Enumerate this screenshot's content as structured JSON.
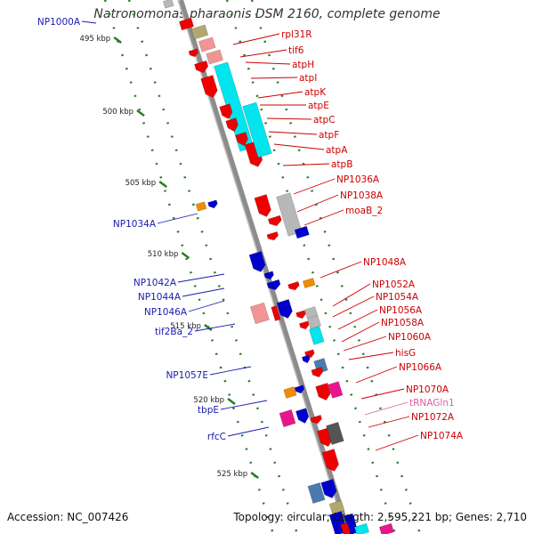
{
  "title": "Natronomonas pharaonis DSM 2160, complete genome",
  "footer": {
    "accession": "Accession: NC_007426",
    "summary": "Topology: circular; Length: 2,595,221 bp; Genes: 2,710"
  },
  "kbp_ticks": [
    "495 kbp",
    "500 kbp",
    "505 kbp",
    "510 kbp",
    "515 kbp",
    "520 kbp",
    "525 kbp"
  ],
  "left_labels": [
    "NP1000A",
    "NP1034A",
    "NP1042A",
    "NP1044A",
    "NP1046A",
    "tif2Ba_2",
    "NP1057E",
    "tbpE",
    "rfcC"
  ],
  "right_labels": [
    "rpl31R",
    "tif6",
    "atpH",
    "atpI",
    "atpK",
    "atpE",
    "atpC",
    "atpF",
    "atpA",
    "atpB",
    "NP1036A",
    "NP1038A",
    "moaB_2",
    "NP1048A",
    "NP1052A",
    "NP1054A",
    "NP1056A",
    "NP1058A",
    "NP1060A",
    "hisG",
    "NP1066A",
    "NP1070A",
    "tRNAGln1",
    "NP1072A",
    "NP1074A"
  ],
  "colors": {
    "left_label": "#1a1ab0",
    "right_label": "#cc0000",
    "trna_label": "#e060a0",
    "backbone": "#8c8c8c",
    "tick_green": "#2a7a2a",
    "gene_red": "#ee0000",
    "gene_blue": "#0000cc",
    "gene_cyan": "#00e5ee",
    "gene_gray": "#b8b8b8",
    "gene_orange": "#f08c00",
    "gene_magenta": "#e8158c",
    "gene_pink": "#f29494",
    "gene_steel": "#4a7ab0",
    "gene_olive": "#b0a870"
  }
}
